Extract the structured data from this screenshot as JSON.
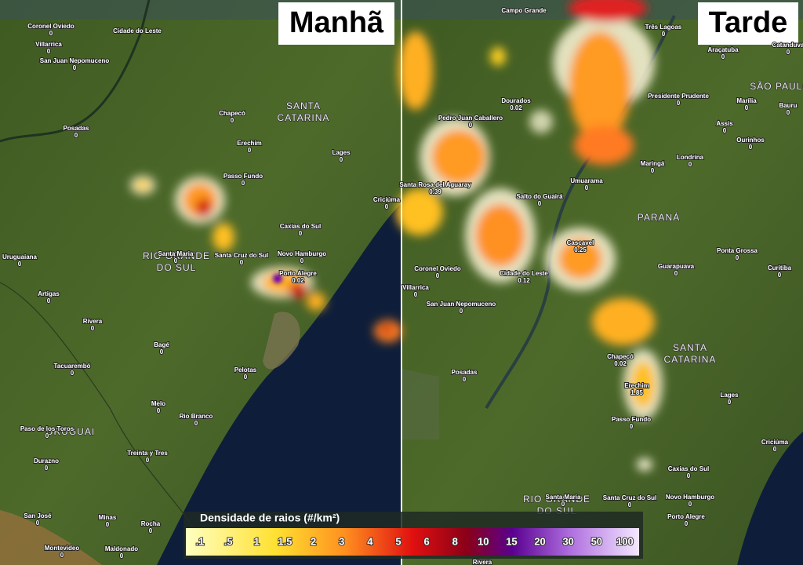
{
  "panels": [
    {
      "title": "Manhã",
      "cities": [
        {
          "name": "Coronel Oviedo",
          "value": 0
        },
        {
          "name": "Cidade do Leste"
        },
        {
          "name": "Villarrica",
          "value": 0
        },
        {
          "name": "San Juan Nepomuceno",
          "value": 0
        },
        {
          "name": "Posadas",
          "value": 0
        },
        {
          "name": "Chapecó",
          "value": 0
        },
        {
          "name": "Erechim",
          "value": 0
        },
        {
          "name": "Lages",
          "value": 0
        },
        {
          "name": "Passo Fundo",
          "value": 0
        },
        {
          "name": "Criciúma",
          "value": 0
        },
        {
          "name": "Caxias do Sul",
          "value": 0
        },
        {
          "name": "Uruguaiana",
          "value": 0
        },
        {
          "name": "Santa Maria",
          "value": 0
        },
        {
          "name": "Santa Cruz do Sul",
          "value": 0
        },
        {
          "name": "Novo Hamburgo",
          "value": 0
        },
        {
          "name": "Porto Alegre",
          "value": 0.02
        },
        {
          "name": "Artigas",
          "value": 0
        },
        {
          "name": "Rivera",
          "value": 0
        },
        {
          "name": "Bagé",
          "value": 0
        },
        {
          "name": "Tacuarembó",
          "value": 0
        },
        {
          "name": "Pelotas",
          "value": 0
        },
        {
          "name": "Melo",
          "value": 0
        },
        {
          "name": "Rio Branco",
          "value": 0
        },
        {
          "name": "Paso de los Toros",
          "value": 0
        },
        {
          "name": "Treinta y Tres",
          "value": 0
        },
        {
          "name": "Durazno",
          "value": 0
        },
        {
          "name": "San José",
          "value": 0
        },
        {
          "name": "Minas",
          "value": 0
        },
        {
          "name": "Rocha",
          "value": 0
        },
        {
          "name": "Montevideo",
          "value": 0
        },
        {
          "name": "Maldonado",
          "value": 0
        }
      ],
      "regions": [
        [
          "SANTA",
          "CATARINA"
        ],
        [
          "RIO GRANDE",
          "DO SUL"
        ],
        [
          "URUGUAI"
        ]
      ]
    },
    {
      "title": "Tarde",
      "cities": [
        {
          "name": "Campo Grande"
        },
        {
          "name": "Três Lagoas",
          "value": 0
        },
        {
          "name": "Araçatuba",
          "value": 0
        },
        {
          "name": "Catanduva",
          "value": 0
        },
        {
          "name": "Dourados",
          "value": 0.02
        },
        {
          "name": "Presidente Prudente",
          "value": 0
        },
        {
          "name": "Marília",
          "value": 0
        },
        {
          "name": "Bauru",
          "value": 0
        },
        {
          "name": "Pedro Juan Caballero",
          "value": 0
        },
        {
          "name": "Assis",
          "value": 0
        },
        {
          "name": "Ourinhos",
          "value": 0
        },
        {
          "name": "Maringá",
          "value": 0
        },
        {
          "name": "Londrina",
          "value": 0
        },
        {
          "name": "Salto do Guairá",
          "value": 0
        },
        {
          "name": "Umuarama",
          "value": 0
        },
        {
          "name": "Santa Rosa del Aguaray",
          "value": 0.39
        },
        {
          "name": "Cascavel",
          "value": 0.25
        },
        {
          "name": "Ponta Grossa",
          "value": 0
        },
        {
          "name": "Guarapuava",
          "value": 0
        },
        {
          "name": "Curitiba",
          "value": 0
        },
        {
          "name": "Coronel Oviedo",
          "value": 0
        },
        {
          "name": "Cidade do Leste",
          "value": 0.12
        },
        {
          "name": "Villarrica",
          "value": 0
        },
        {
          "name": "San Juan Nepomuceno",
          "value": 0
        },
        {
          "name": "Posadas",
          "value": 0
        },
        {
          "name": "Chapecó",
          "value": 0.02
        },
        {
          "name": "Lages",
          "value": 0
        },
        {
          "name": "Erechim",
          "value": 1.85
        },
        {
          "name": "Passo Fundo",
          "value": 0
        },
        {
          "name": "Criciúma",
          "value": 0
        },
        {
          "name": "Caxias do Sul",
          "value": 0
        },
        {
          "name": "Santa Maria",
          "value": 0
        },
        {
          "name": "Santa Cruz do Sul",
          "value": 0
        },
        {
          "name": "Novo Hamburgo",
          "value": 0
        },
        {
          "name": "Porto Alegre",
          "value": 0
        },
        {
          "name": "Rivera"
        }
      ],
      "regions": [
        [
          "SÃO PAULO"
        ],
        [
          "PARANÁ"
        ],
        [
          "SANTA",
          "CATARINA"
        ],
        [
          "RIO GRANDE",
          "DO SUL"
        ]
      ]
    }
  ],
  "legend": {
    "title": "Densidade de raios (#/km²)",
    "ticks": [
      ".1",
      ".5",
      "1",
      "1.5",
      "2",
      "3",
      "4",
      "5",
      "6",
      "8",
      "10",
      "15",
      "20",
      "30",
      "50",
      "100"
    ]
  }
}
